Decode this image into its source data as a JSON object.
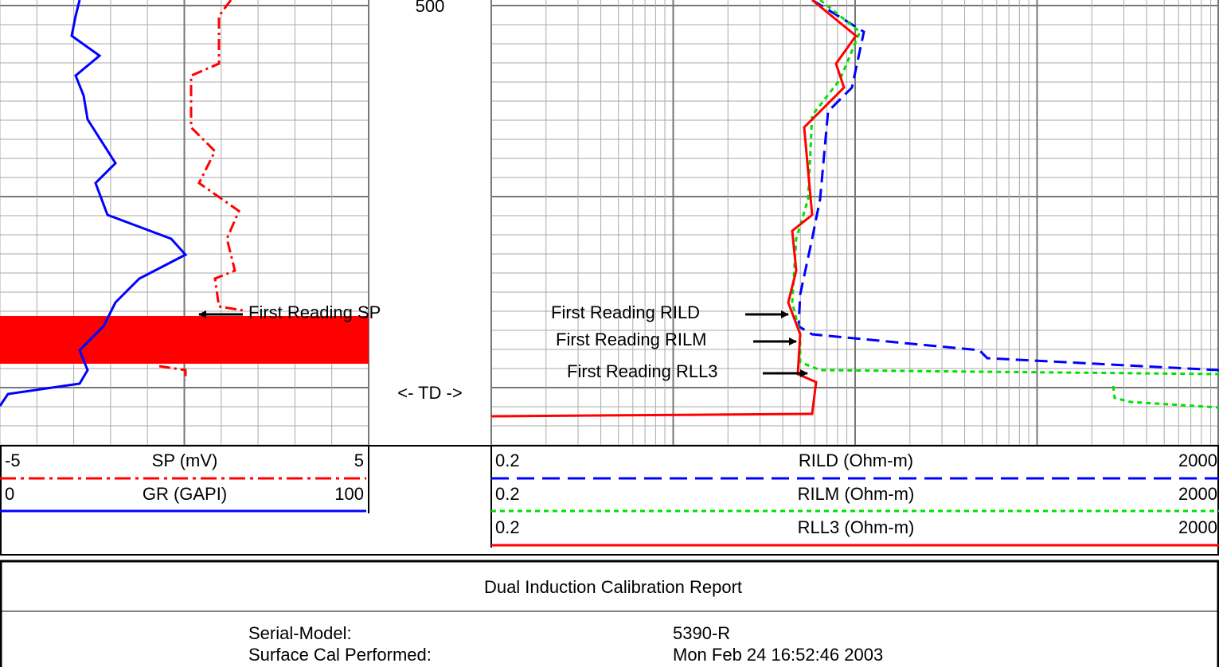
{
  "depth_track": {
    "top_depth": 500,
    "td_label": "<- TD ->"
  },
  "annotations": [
    "First Reading SP",
    "First Reading RILD",
    "First Reading RILM",
    "First Reading RLL3"
  ],
  "legend_left": [
    {
      "min": -5,
      "name": "SP (mV)",
      "max": 5
    },
    {
      "min": 0,
      "name": "GR (GAPI)",
      "max": 100
    }
  ],
  "legend_right": [
    {
      "min": 0.2,
      "name": "RILD (Ohm-m)",
      "max": 2000
    },
    {
      "min": 0.2,
      "name": "RILM (Ohm-m)",
      "max": 2000
    },
    {
      "min": 0.2,
      "name": "RLL3 (Ohm-m)",
      "max": 2000
    }
  ],
  "report": {
    "title": "Dual Induction Calibration Report",
    "rows": [
      {
        "label": "Serial-Model:",
        "value": "5390-R"
      },
      {
        "label": "Surface Cal Performed:",
        "value": "Mon Feb 24 16:52:46 2003"
      }
    ]
  }
}
